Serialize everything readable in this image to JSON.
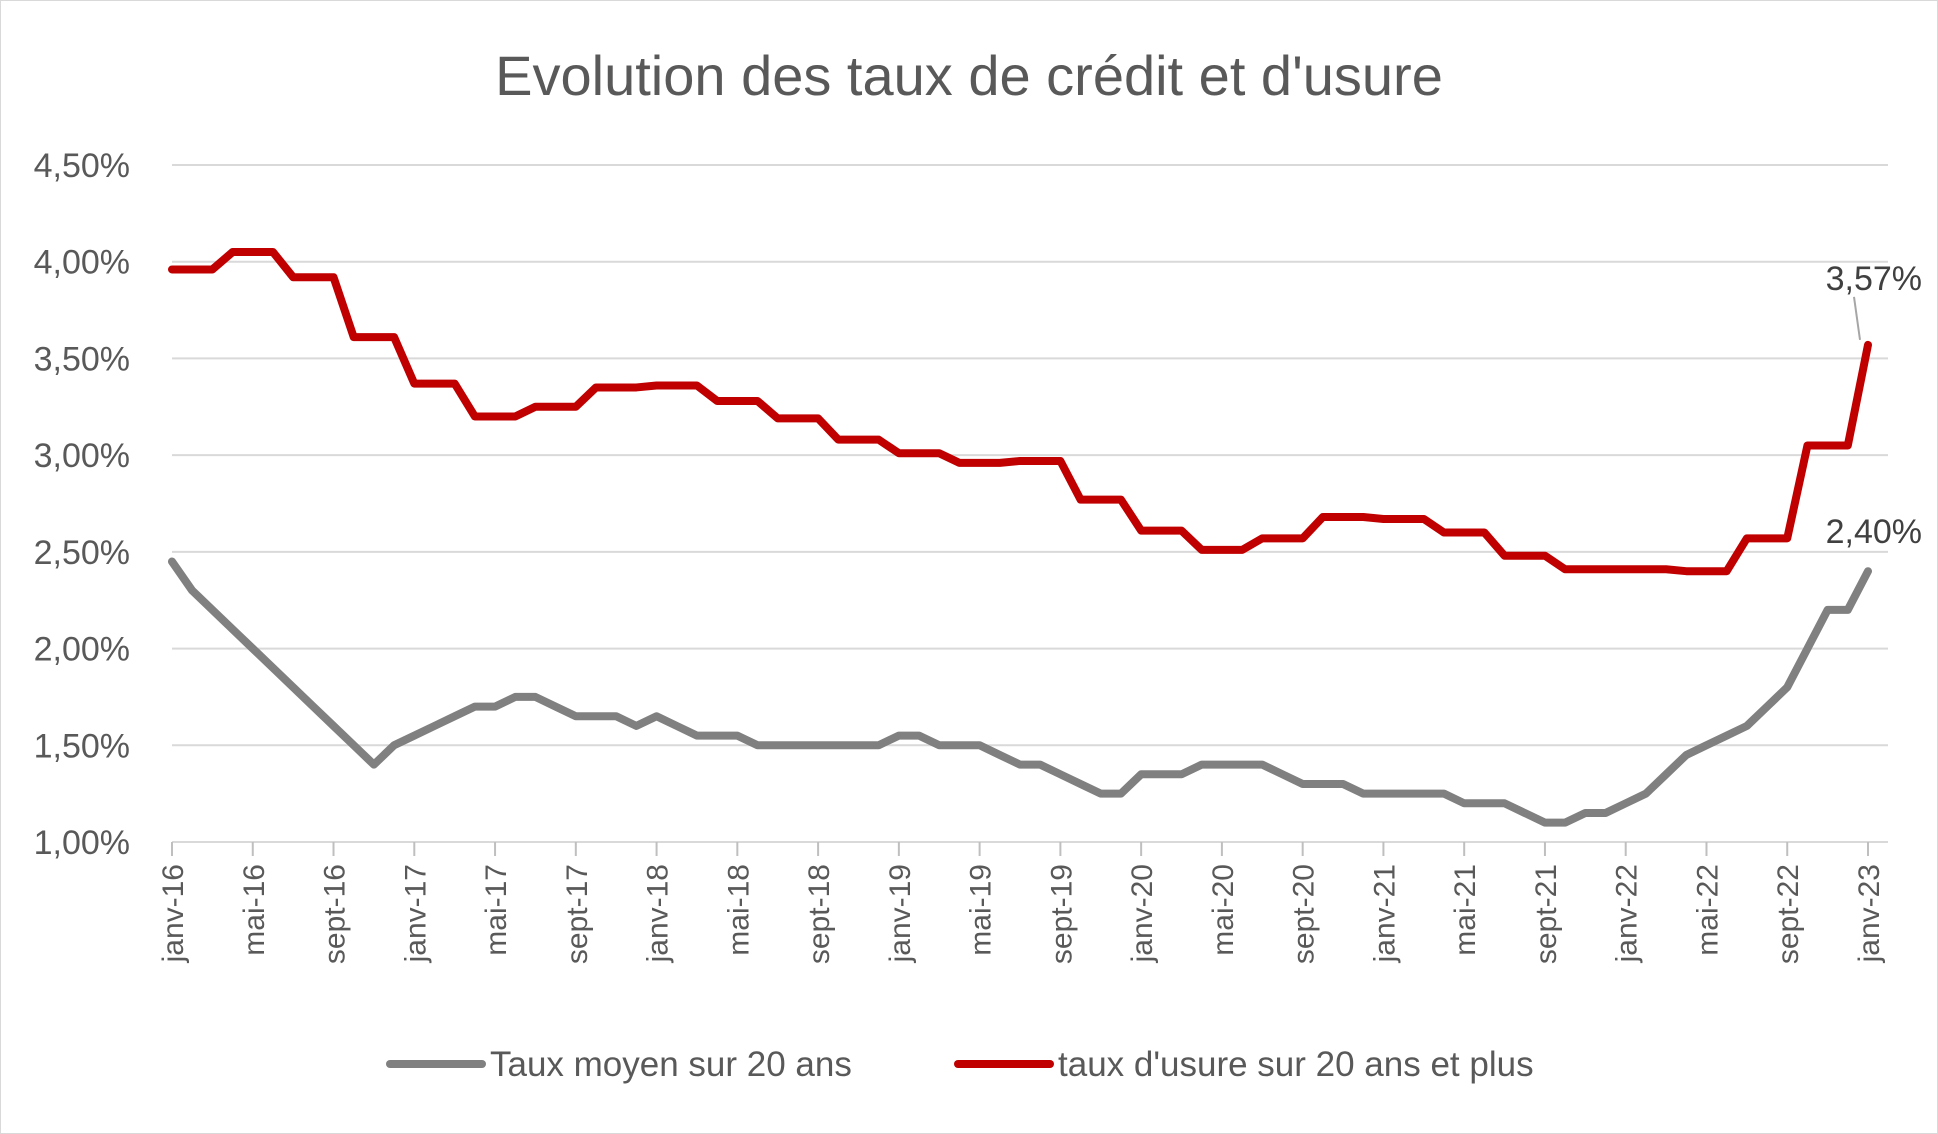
{
  "chart_data": {
    "type": "line",
    "title": "Evolution des taux de crédit et d'usure",
    "xlabel": "",
    "ylabel": "",
    "ylim": [
      1.0,
      4.5
    ],
    "yticks": [
      "1,00%",
      "1,50%",
      "2,00%",
      "2,50%",
      "3,00%",
      "3,50%",
      "4,00%",
      "4,50%"
    ],
    "ytick_values": [
      1.0,
      1.5,
      2.0,
      2.5,
      3.0,
      3.5,
      4.0,
      4.5
    ],
    "grid": "horizontal",
    "legend_position": "bottom",
    "x": [
      "janv-16",
      "févr-16",
      "mars-16",
      "avr-16",
      "mai-16",
      "juin-16",
      "juil-16",
      "août-16",
      "sept-16",
      "oct-16",
      "nov-16",
      "déc-16",
      "janv-17",
      "févr-17",
      "mars-17",
      "avr-17",
      "mai-17",
      "juin-17",
      "juil-17",
      "août-17",
      "sept-17",
      "oct-17",
      "nov-17",
      "déc-17",
      "janv-18",
      "févr-18",
      "mars-18",
      "avr-18",
      "mai-18",
      "juin-18",
      "juil-18",
      "août-18",
      "sept-18",
      "oct-18",
      "nov-18",
      "déc-18",
      "janv-19",
      "févr-19",
      "mars-19",
      "avr-19",
      "mai-19",
      "juin-19",
      "juil-19",
      "août-19",
      "sept-19",
      "oct-19",
      "nov-19",
      "déc-19",
      "janv-20",
      "févr-20",
      "mars-20",
      "avr-20",
      "mai-20",
      "juin-20",
      "juil-20",
      "août-20",
      "sept-20",
      "oct-20",
      "nov-20",
      "déc-20",
      "janv-21",
      "févr-21",
      "mars-21",
      "avr-21",
      "mai-21",
      "juin-21",
      "juil-21",
      "août-21",
      "sept-21",
      "oct-21",
      "nov-21",
      "déc-21",
      "janv-22",
      "févr-22",
      "mars-22",
      "avr-22",
      "mai-22",
      "juin-22",
      "juil-22",
      "août-22",
      "sept-22",
      "oct-22",
      "nov-22",
      "déc-22",
      "janv-23"
    ],
    "xtick_labels": [
      "janv-16",
      "mai-16",
      "sept-16",
      "janv-17",
      "mai-17",
      "sept-17",
      "janv-18",
      "mai-18",
      "sept-18",
      "janv-19",
      "mai-19",
      "sept-19",
      "janv-20",
      "mai-20",
      "sept-20",
      "janv-21",
      "mai-21",
      "sept-21",
      "janv-22",
      "mai-22",
      "sept-22",
      "janv-23"
    ],
    "series": [
      {
        "name": "Taux moyen sur 20 ans",
        "color": "#808080",
        "values": [
          2.45,
          2.3,
          2.2,
          2.1,
          2.0,
          1.9,
          1.8,
          1.7,
          1.6,
          1.5,
          1.4,
          1.5,
          1.55,
          1.6,
          1.65,
          1.7,
          1.7,
          1.75,
          1.75,
          1.7,
          1.65,
          1.65,
          1.65,
          1.6,
          1.65,
          1.6,
          1.55,
          1.55,
          1.55,
          1.5,
          1.5,
          1.5,
          1.5,
          1.5,
          1.5,
          1.5,
          1.55,
          1.55,
          1.5,
          1.5,
          1.5,
          1.45,
          1.4,
          1.4,
          1.35,
          1.3,
          1.25,
          1.25,
          1.35,
          1.35,
          1.35,
          1.4,
          1.4,
          1.4,
          1.4,
          1.35,
          1.3,
          1.3,
          1.3,
          1.25,
          1.25,
          1.25,
          1.25,
          1.25,
          1.2,
          1.2,
          1.2,
          1.15,
          1.1,
          1.1,
          1.15,
          1.15,
          1.2,
          1.25,
          1.35,
          1.45,
          1.5,
          1.55,
          1.6,
          1.7,
          1.8,
          2.0,
          2.2,
          2.2,
          2.4
        ],
        "end_label": "2,40%"
      },
      {
        "name": "taux d'usure sur 20 ans et plus",
        "color": "#c00000",
        "values": [
          3.96,
          3.96,
          3.96,
          4.05,
          4.05,
          4.05,
          3.92,
          3.92,
          3.92,
          3.61,
          3.61,
          3.61,
          3.37,
          3.37,
          3.37,
          3.2,
          3.2,
          3.2,
          3.25,
          3.25,
          3.25,
          3.35,
          3.35,
          3.35,
          3.36,
          3.36,
          3.36,
          3.28,
          3.28,
          3.28,
          3.19,
          3.19,
          3.19,
          3.08,
          3.08,
          3.08,
          3.01,
          3.01,
          3.01,
          2.96,
          2.96,
          2.96,
          2.97,
          2.97,
          2.97,
          2.77,
          2.77,
          2.77,
          2.61,
          2.61,
          2.61,
          2.51,
          2.51,
          2.51,
          2.57,
          2.57,
          2.57,
          2.68,
          2.68,
          2.68,
          2.67,
          2.67,
          2.67,
          2.6,
          2.6,
          2.6,
          2.48,
          2.48,
          2.48,
          2.41,
          2.41,
          2.41,
          2.41,
          2.41,
          2.41,
          2.4,
          2.4,
          2.4,
          2.57,
          2.57,
          2.57,
          3.05,
          3.05,
          3.05,
          3.57
        ],
        "end_label": "3,57%"
      }
    ]
  }
}
